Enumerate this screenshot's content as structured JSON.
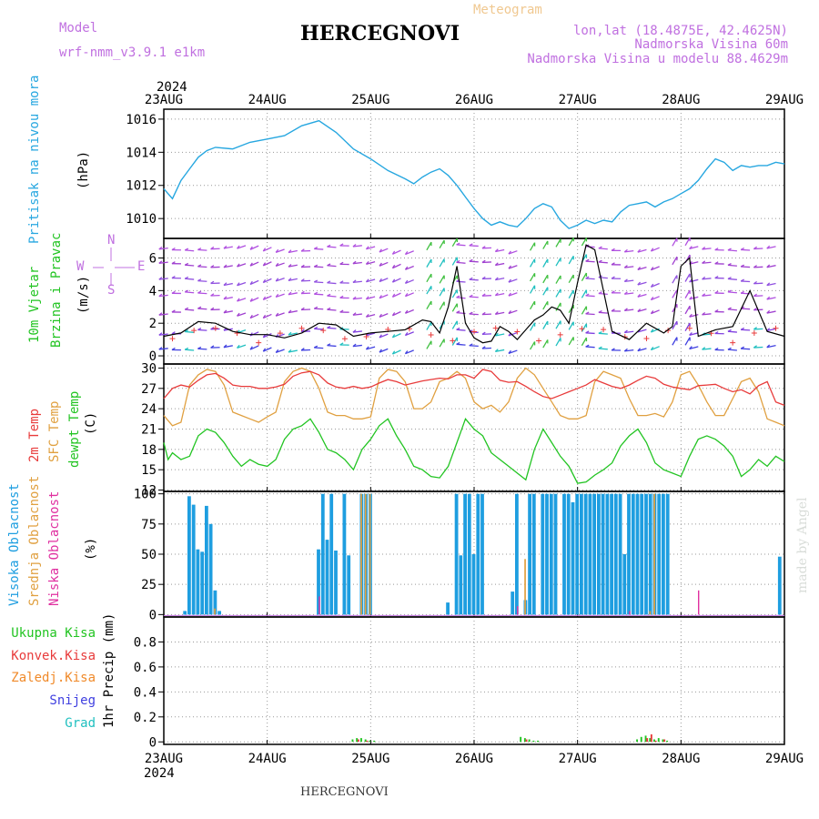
{
  "header": {
    "model_label": "Model",
    "model_name": "wrf-nmm_v3.9.1 e1km",
    "station": "HERCEGNOVI",
    "meteogram_label": "Meteogram",
    "lonlat": "lon,lat (18.4875E, 42.4625N)",
    "altitude": "Nadmorska Visina 60m",
    "model_altitude": "Nadmorska Visina u modelu 88.4629m",
    "year_top": "2024",
    "year_bottom": "2024",
    "footer_station": "HERCEGNOVI",
    "watermark": "made by Angel"
  },
  "colors": {
    "pressure": "#27a7e0",
    "temp2m": "#e83b3b",
    "sfc_temp": "#e0a040",
    "dewpoint": "#22c422",
    "high_cloud": "#1e9ee0",
    "mid_cloud": "#e0a040",
    "low_cloud": "#e030a0",
    "total_precip": "#22c422",
    "conv_precip": "#e83b3b",
    "frozen_precip": "#f08a2a",
    "snow": "#4040e0",
    "hail": "#20c0c0",
    "wind_title_1": "#22c422",
    "wind_title_2": "#22c422",
    "arrow": "#b050e0",
    "gust": "#e83b3b"
  },
  "chart_data": [
    {
      "type": "line",
      "name": "pressure",
      "ylabel": "Pritisak na nivou mora",
      "unit": "(hPa)",
      "ylim": [
        1008.8,
        1016.6
      ],
      "yticks": [
        1010,
        1012,
        1014,
        1016
      ],
      "grid": true,
      "series": [
        {
          "name": "pressure",
          "x": [
            0,
            2,
            4,
            6,
            8,
            10,
            12,
            16,
            20,
            24,
            28,
            32,
            36,
            40,
            44,
            48,
            52,
            56,
            58,
            60,
            62,
            64,
            66,
            68,
            70,
            72,
            74,
            76,
            78,
            80,
            82,
            84,
            86,
            88,
            90,
            92,
            94,
            96,
            98,
            100,
            102,
            104,
            106,
            108,
            110,
            112,
            114,
            116,
            118,
            120,
            122,
            124,
            126,
            128,
            130,
            132,
            134,
            136,
            138,
            140,
            142,
            144
          ],
          "values": [
            1011.8,
            1011.2,
            1012.3,
            1013.0,
            1013.7,
            1014.1,
            1014.3,
            1014.2,
            1014.6,
            1014.8,
            1015.0,
            1015.6,
            1015.9,
            1015.2,
            1014.2,
            1013.6,
            1012.9,
            1012.4,
            1012.1,
            1012.5,
            1012.8,
            1013.0,
            1012.6,
            1012.0,
            1011.3,
            1010.6,
            1010.0,
            1009.6,
            1009.8,
            1009.6,
            1009.5,
            1010.0,
            1010.6,
            1010.9,
            1010.7,
            1009.9,
            1009.4,
            1009.6,
            1009.9,
            1009.7,
            1009.9,
            1009.8,
            1010.4,
            1010.8,
            1010.9,
            1011.0,
            1010.7,
            1011.0,
            1011.2,
            1011.5,
            1011.8,
            1012.3,
            1013.0,
            1013.6,
            1013.4,
            1012.9,
            1013.2,
            1013.1,
            1013.2,
            1013.2,
            1013.4,
            1013.3
          ]
        }
      ]
    },
    {
      "type": "line",
      "name": "wind",
      "ylabel_1": "10m Vjetar",
      "ylabel_2": "Brzina i Pravac",
      "unit": "(m/s)",
      "ylim": [
        -0.5,
        7.2
      ],
      "yticks": [
        0,
        2,
        4,
        6
      ],
      "compass": [
        "N",
        "S",
        "W",
        "E"
      ],
      "grid": true,
      "series": [
        {
          "name": "speed",
          "x": [
            0,
            4,
            8,
            12,
            16,
            20,
            24,
            28,
            32,
            36,
            40,
            44,
            48,
            52,
            56,
            60,
            62,
            64,
            66,
            68,
            70,
            72,
            74,
            76,
            78,
            80,
            82,
            84,
            86,
            88,
            90,
            92,
            94,
            96,
            98,
            100,
            104,
            108,
            112,
            116,
            118,
            120,
            122,
            124,
            128,
            132,
            136,
            140,
            144
          ],
          "values": [
            1.2,
            1.4,
            2.1,
            2.0,
            1.5,
            1.3,
            1.3,
            1.1,
            1.4,
            2.0,
            1.9,
            1.2,
            1.4,
            1.5,
            1.6,
            2.2,
            2.1,
            1.4,
            3.0,
            5.5,
            2.0,
            1.1,
            0.8,
            0.9,
            1.8,
            1.5,
            1.0,
            1.6,
            2.2,
            2.5,
            3.0,
            2.8,
            2.0,
            4.5,
            6.8,
            6.5,
            1.5,
            1.0,
            2.0,
            1.4,
            1.8,
            5.5,
            6.0,
            1.2,
            1.6,
            1.8,
            4.0,
            1.5,
            1.2
          ]
        }
      ]
    },
    {
      "type": "line",
      "name": "temperature",
      "ylabel_1": "2m Temp",
      "ylabel_2": "SFC Temp",
      "ylabel_3": "dewpt Temp",
      "unit": "(C)",
      "ylim": [
        11.8,
        30.6
      ],
      "yticks": [
        12,
        15,
        18,
        21,
        24,
        27,
        30
      ],
      "grid": true,
      "series": [
        {
          "name": "2m",
          "x": [
            0,
            2,
            4,
            6,
            8,
            10,
            12,
            14,
            16,
            18,
            20,
            22,
            24,
            26,
            28,
            30,
            32,
            34,
            36,
            38,
            40,
            42,
            44,
            46,
            48,
            50,
            52,
            54,
            56,
            58,
            60,
            62,
            64,
            66,
            68,
            70,
            72,
            74,
            76,
            78,
            80,
            82,
            84,
            86,
            88,
            90,
            92,
            94,
            96,
            98,
            100,
            102,
            104,
            106,
            108,
            110,
            112,
            114,
            116,
            118,
            120,
            122,
            124,
            126,
            128,
            130,
            132,
            134,
            136,
            138,
            140,
            142,
            144
          ],
          "values": [
            25.5,
            27.0,
            27.5,
            27.2,
            28.2,
            29.0,
            29.2,
            28.5,
            27.5,
            27.3,
            27.3,
            27.0,
            27.0,
            27.2,
            27.6,
            28.8,
            29.3,
            29.5,
            29.0,
            27.8,
            27.2,
            27.0,
            27.3,
            27.0,
            27.2,
            27.8,
            28.3,
            28.0,
            27.5,
            27.8,
            28.1,
            28.3,
            28.5,
            28.4,
            29.0,
            29.0,
            28.5,
            29.8,
            29.5,
            28.2,
            27.9,
            28.0,
            27.3,
            26.5,
            25.8,
            25.5,
            26.0,
            26.5,
            27.0,
            27.5,
            28.3,
            27.8,
            27.3,
            27.0,
            27.5,
            28.2,
            28.8,
            28.5,
            27.6,
            27.2,
            27.0,
            26.8,
            27.4,
            27.5,
            27.6,
            27.0,
            26.5,
            26.8,
            26.2,
            27.4,
            28.0,
            25.0,
            24.5
          ]
        },
        {
          "name": "sfc",
          "x": [
            0,
            2,
            4,
            6,
            8,
            10,
            12,
            14,
            16,
            18,
            20,
            22,
            24,
            26,
            28,
            30,
            32,
            34,
            36,
            38,
            40,
            42,
            44,
            46,
            48,
            50,
            52,
            54,
            56,
            58,
            60,
            62,
            64,
            66,
            68,
            70,
            72,
            74,
            76,
            78,
            80,
            82,
            84,
            86,
            88,
            90,
            92,
            94,
            96,
            98,
            100,
            102,
            104,
            106,
            108,
            110,
            112,
            114,
            116,
            118,
            120,
            122,
            124,
            126,
            128,
            130,
            132,
            134,
            136,
            138,
            140,
            142,
            144
          ],
          "values": [
            23.0,
            21.5,
            22.0,
            27.5,
            29.0,
            29.8,
            29.5,
            27.5,
            23.5,
            23.0,
            22.5,
            22.0,
            22.8,
            23.5,
            28.0,
            29.5,
            30.0,
            29.5,
            27.0,
            23.5,
            23.0,
            23.0,
            22.5,
            22.5,
            22.8,
            28.5,
            29.8,
            29.5,
            28.0,
            24.0,
            24.0,
            25.0,
            28.0,
            28.5,
            29.5,
            28.5,
            25.0,
            24.0,
            24.5,
            23.5,
            25.0,
            28.5,
            30.0,
            29.0,
            27.0,
            25.0,
            23.0,
            22.5,
            22.5,
            23.0,
            28.0,
            29.5,
            29.0,
            28.5,
            25.5,
            23.0,
            23.0,
            23.3,
            22.8,
            25.0,
            29.0,
            29.5,
            27.5,
            25.0,
            23.0,
            23.0,
            25.5,
            28.0,
            28.5,
            26.5,
            22.5,
            22.0,
            21.5
          ]
        },
        {
          "name": "dewpt",
          "x": [
            0,
            1,
            2,
            4,
            6,
            8,
            10,
            12,
            14,
            16,
            18,
            20,
            22,
            24,
            26,
            28,
            30,
            32,
            34,
            36,
            38,
            40,
            42,
            44,
            46,
            48,
            50,
            52,
            54,
            56,
            58,
            60,
            62,
            64,
            66,
            68,
            70,
            72,
            74,
            76,
            78,
            80,
            82,
            84,
            86,
            88,
            90,
            92,
            94,
            96,
            98,
            100,
            102,
            104,
            106,
            108,
            110,
            112,
            114,
            116,
            118,
            120,
            122,
            124,
            126,
            128,
            130,
            132,
            134,
            136,
            138,
            140,
            142,
            144
          ],
          "values": [
            19.0,
            16.5,
            17.5,
            16.5,
            17.0,
            20.0,
            21.0,
            20.5,
            19.0,
            17.0,
            15.5,
            16.5,
            15.8,
            15.5,
            16.5,
            19.5,
            21.0,
            21.5,
            22.5,
            20.5,
            18.0,
            17.5,
            16.5,
            15.0,
            18.0,
            19.5,
            21.5,
            22.5,
            20.0,
            18.0,
            15.5,
            15.0,
            14.0,
            13.8,
            15.5,
            19.0,
            22.5,
            21.0,
            20.0,
            17.5,
            16.5,
            15.5,
            14.5,
            13.5,
            18.0,
            21.0,
            19.0,
            17.0,
            15.5,
            13.0,
            13.2,
            14.2,
            15.0,
            16.0,
            18.5,
            20.0,
            21.0,
            19.0,
            16.0,
            15.0,
            14.5,
            14.0,
            17.0,
            19.5,
            20.0,
            19.5,
            18.5,
            17.0,
            14.0,
            15.0,
            16.5,
            15.5,
            17.0,
            16.2
          ]
        }
      ]
    },
    {
      "type": "bar",
      "name": "clouds",
      "ylabel_1": "Visoka Oblacnost",
      "ylabel_2": "Srednja Oblacnost",
      "ylabel_3": "Niska Oblacnost",
      "unit": "(%)",
      "ylim": [
        -2,
        102
      ],
      "yticks": [
        0,
        25,
        50,
        75,
        100
      ],
      "grid": true,
      "series": [
        {
          "name": "high",
          "x": [
            5,
            6,
            7,
            8,
            9,
            10,
            11,
            12,
            13,
            36,
            37,
            38,
            39,
            40,
            41,
            42,
            43,
            44,
            45,
            46,
            47,
            48,
            49,
            50,
            51,
            52,
            53,
            54,
            55,
            56,
            57,
            58,
            59,
            66,
            67,
            68,
            69,
            70,
            71,
            72,
            73,
            74,
            75,
            76,
            77,
            78,
            79,
            80,
            81,
            82,
            83,
            84,
            85,
            86,
            87,
            88,
            89,
            90,
            91,
            92,
            93,
            94,
            95,
            96,
            97,
            98,
            99,
            100,
            101,
            102,
            103,
            104,
            105,
            106,
            107,
            108,
            109,
            110,
            111,
            112,
            113,
            114,
            115,
            116,
            117,
            143
          ],
          "values": [
            3,
            98,
            91,
            54,
            52,
            90,
            75,
            20,
            3,
            54,
            100,
            62,
            100,
            53,
            0,
            100,
            49,
            0,
            0,
            100,
            100,
            100,
            0,
            0,
            0,
            0,
            0,
            0,
            0,
            0,
            0,
            0,
            0,
            10,
            0,
            100,
            49,
            100,
            100,
            50,
            100,
            100,
            0,
            0,
            0,
            0,
            0,
            0,
            19,
            100,
            0,
            12,
            100,
            100,
            0,
            100,
            100,
            100,
            100,
            0,
            100,
            100,
            93,
            100,
            100,
            100,
            100,
            100,
            100,
            100,
            100,
            100,
            100,
            100,
            50,
            100,
            100,
            100,
            100,
            100,
            100,
            100,
            100,
            100,
            100,
            48
          ]
        },
        {
          "name": "mid",
          "x": [
            12,
            13,
            36,
            46,
            47,
            48,
            82,
            84,
            85,
            86,
            87,
            88,
            113,
            114,
            115
          ],
          "values": [
            5,
            0,
            0,
            100,
            100,
            100,
            0,
            46,
            0,
            0,
            0,
            0,
            3,
            100,
            0
          ]
        },
        {
          "name": "low",
          "x": [
            36,
            82,
            108,
            124
          ],
          "values": [
            15,
            7,
            3,
            20
          ]
        }
      ]
    },
    {
      "type": "bar",
      "name": "precipitation",
      "legend": [
        "Ukupna Kisa",
        "Konvek.Kisa",
        "Zaledj.Kisa",
        "Snijeg",
        "Grad"
      ],
      "ylabel": "1hr Precip (mm)",
      "ylim": [
        -0.02,
        1.0
      ],
      "yticks": [
        0,
        0.2,
        0.4,
        0.6,
        0.8
      ],
      "grid": true,
      "series": [
        {
          "name": "total",
          "x": [
            44,
            45,
            46,
            47,
            48,
            49,
            83,
            84,
            85,
            86,
            87,
            110,
            111,
            112,
            113,
            114,
            115,
            116,
            117
          ],
          "values": [
            0.02,
            0.03,
            0.03,
            0.02,
            0.01,
            0.01,
            0.04,
            0.03,
            0.02,
            0.01,
            0.01,
            0.02,
            0.04,
            0.05,
            0.03,
            0.02,
            0.03,
            0.02,
            0.01
          ]
        },
        {
          "name": "conv",
          "x": [
            45,
            47,
            84,
            112,
            113,
            114,
            116
          ],
          "values": [
            0.02,
            0.01,
            0.02,
            0.03,
            0.06,
            0.01,
            0.02
          ]
        }
      ]
    }
  ],
  "time_axis": {
    "days": [
      "23AUG",
      "24AUG",
      "25AUG",
      "26AUG",
      "27AUG",
      "28AUG",
      "29AUG"
    ],
    "hours_total": 144
  }
}
